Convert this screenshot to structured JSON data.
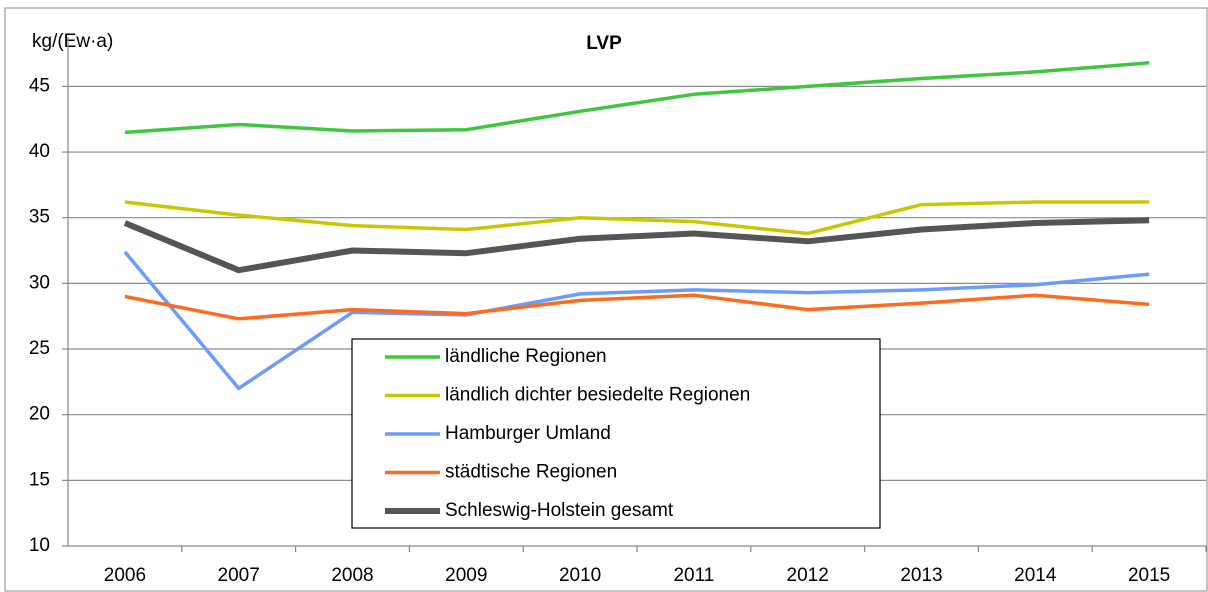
{
  "chart_data": {
    "type": "line",
    "title": "LVP",
    "y_label": "kg/(Ew·a)",
    "categories": [
      "2006",
      "2007",
      "2008",
      "2009",
      "2010",
      "2011",
      "2012",
      "2013",
      "2014",
      "2015"
    ],
    "series": [
      {
        "name": "ländliche Regionen",
        "color": "#3ec63e",
        "width": 3.5,
        "values": [
          41.5,
          42.1,
          41.6,
          41.7,
          43.1,
          44.4,
          45.0,
          45.6,
          46.1,
          46.8
        ]
      },
      {
        "name": "ländlich dichter besiedelte Regionen",
        "color": "#c8c800",
        "width": 3.5,
        "values": [
          36.2,
          35.2,
          34.4,
          34.1,
          35.0,
          34.7,
          33.8,
          36.0,
          36.2,
          36.2
        ]
      },
      {
        "name": "Hamburger Umland",
        "color": "#6b9bff",
        "width": 3.5,
        "values": [
          32.4,
          22.0,
          27.8,
          27.6,
          29.2,
          29.5,
          29.3,
          29.5,
          29.9,
          30.7
        ]
      },
      {
        "name": "städtische Regionen",
        "color": "#ff6a1e",
        "width": 3.5,
        "values": [
          29.0,
          27.3,
          28.0,
          27.7,
          28.7,
          29.1,
          28.0,
          28.5,
          29.1,
          28.4
        ]
      },
      {
        "name": "Schleswig-Holstein gesamt",
        "color": "#555555",
        "width": 6,
        "values": [
          34.6,
          31.0,
          32.5,
          32.3,
          33.4,
          33.8,
          33.2,
          34.1,
          34.6,
          34.8
        ]
      }
    ],
    "ylim": [
      10,
      48
    ],
    "yticks": [
      10,
      15,
      20,
      25,
      30,
      35,
      40,
      45
    ],
    "grid": true
  }
}
